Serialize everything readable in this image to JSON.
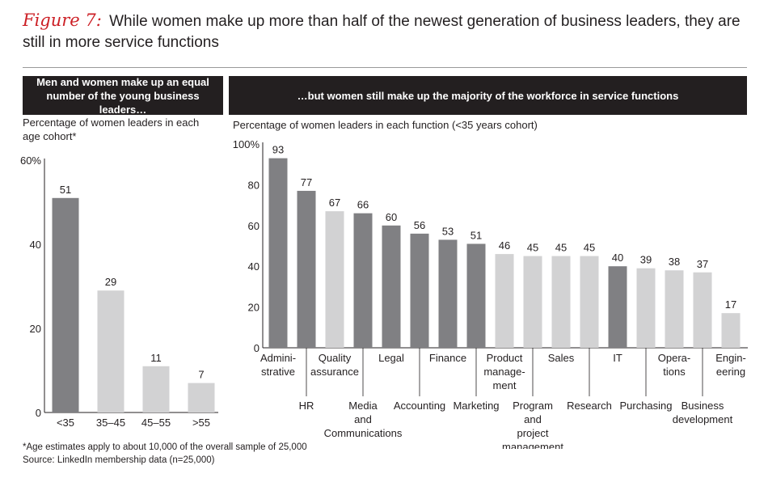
{
  "figure": {
    "label": "Figure 7:",
    "title": "While women make up more than half of the newest generation of business leaders, they are still in more service functions"
  },
  "left_panel": {
    "header": "Men and women make up an equal number of the young business leaders…",
    "subtitle": "Percentage of women leaders in each age cohort*"
  },
  "right_panel": {
    "header": "…but women still make up the majority of the workforce in service functions",
    "subtitle": "Percentage of women leaders in each function (<35 years cohort)"
  },
  "footnote": "*Age estimates apply to about 10,000 of the overall sample of 25,000",
  "source": "Source: LinkedIn membership data (n=25,000)",
  "colors": {
    "dark": "#808083",
    "light": "#d2d2d3",
    "axis": "#231f20"
  },
  "chart_data": [
    {
      "type": "bar",
      "title": "Men and women make up an equal number of the young business leaders…",
      "ylabel": "Percentage of women leaders in each age cohort*",
      "ylim": [
        0,
        60
      ],
      "yticks": [
        0,
        20,
        40,
        60
      ],
      "ytick_labels": [
        "0",
        "20",
        "40",
        "60%"
      ],
      "categories": [
        "<35",
        "35–45",
        "45–55",
        ">55"
      ],
      "values": [
        51,
        29,
        11,
        7
      ],
      "shades": [
        "dark",
        "light",
        "light",
        "light"
      ]
    },
    {
      "type": "bar",
      "title": "…but women still make up the majority of the workforce in service functions",
      "ylabel": "Percentage of women leaders in each function (<35 years cohort)",
      "ylim": [
        0,
        100
      ],
      "yticks": [
        0,
        20,
        40,
        60,
        80,
        100
      ],
      "ytick_labels": [
        "0",
        "20",
        "40",
        "60",
        "80",
        "100%"
      ],
      "categories": [
        "Administrative",
        "HR",
        "Quality assurance",
        "Media and Communications",
        "Legal",
        "Accounting",
        "Finance",
        "Marketing",
        "Product management",
        "Program and project management",
        "Sales",
        "Research",
        "IT",
        "Purchasing",
        "Operations",
        "Business development",
        "Engineering"
      ],
      "category_label_lines": [
        [
          "Admini-",
          "strative"
        ],
        [
          "HR"
        ],
        [
          "Quality",
          "assurance"
        ],
        [
          "Media",
          "and",
          "Communications"
        ],
        [
          "Legal"
        ],
        [
          "Accounting"
        ],
        [
          "Finance"
        ],
        [
          "Marketing"
        ],
        [
          "Product",
          "manage-",
          "ment"
        ],
        [
          "Program",
          "and",
          "project",
          "management"
        ],
        [
          "Sales"
        ],
        [
          "Research"
        ],
        [
          "IT"
        ],
        [
          "Purchasing"
        ],
        [
          "Opera-",
          "tions"
        ],
        [
          "Business",
          "development"
        ],
        [
          "Engin-",
          "eering"
        ]
      ],
      "values": [
        93,
        77,
        67,
        66,
        60,
        56,
        53,
        51,
        46,
        45,
        45,
        45,
        40,
        39,
        38,
        37,
        17
      ],
      "shades": [
        "dark",
        "dark",
        "light",
        "dark",
        "dark",
        "dark",
        "dark",
        "dark",
        "light",
        "light",
        "light",
        "light",
        "dark",
        "light",
        "light",
        "light",
        "light"
      ]
    }
  ]
}
